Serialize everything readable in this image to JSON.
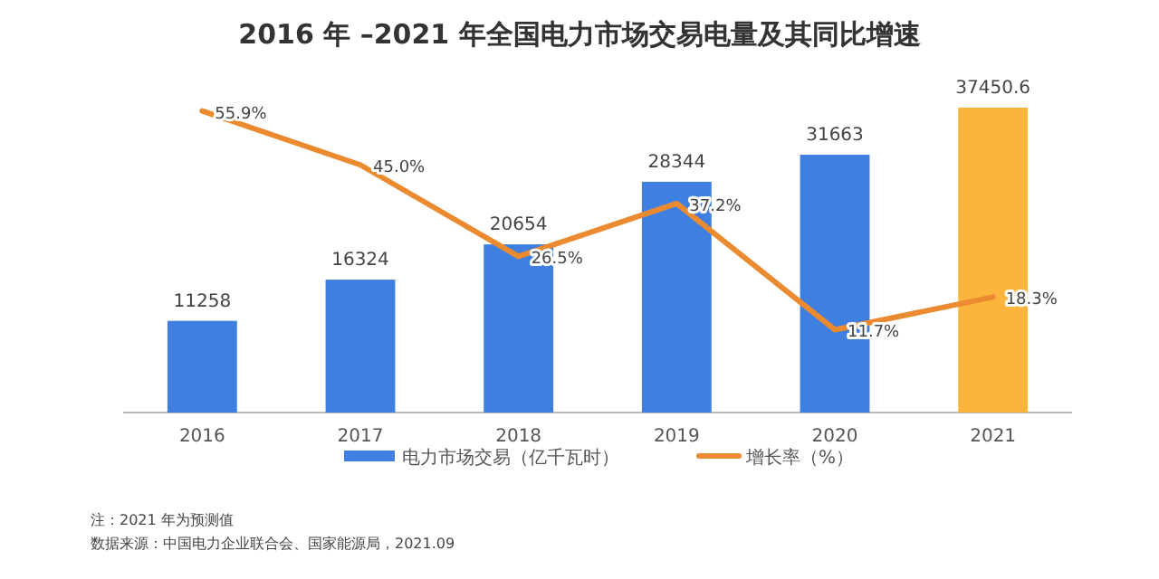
{
  "chart_data": {
    "type": "bar",
    "title": "2016 年 –2021 年全国电力市场交易电量及其同比增速",
    "categories": [
      "2016",
      "2017",
      "2018",
      "2019",
      "2020",
      "2021"
    ],
    "series": [
      {
        "name": "电力市场交易（亿千瓦时）",
        "color": "#3f7fe0",
        "colors": [
          "#3f7fe0",
          "#3f7fe0",
          "#3f7fe0",
          "#3f7fe0",
          "#3f7fe0",
          "#fbb53c"
        ],
        "values": [
          11258,
          16324,
          20654,
          28344,
          31663,
          37450.6
        ],
        "value_labels": [
          "11258",
          "16324",
          "20654",
          "28344",
          "31663",
          "37450.6"
        ]
      },
      {
        "name": "增长率（%）",
        "type": "line",
        "axis": "y2",
        "color": "#ec8a2f",
        "values": [
          55.9,
          45.0,
          26.5,
          37.2,
          11.7,
          18.3
        ],
        "value_labels": [
          "55.9%",
          "45.0%",
          "26.5%",
          "37.2%",
          "11.7%",
          "18.3%"
        ]
      }
    ],
    "grid": false,
    "legend": "bottom",
    "tick_labels": "x",
    "annotations": [
      "注：2021 年为预测值",
      "数据来源：中国电力企业联合会、国家能源局，2021.09"
    ]
  }
}
